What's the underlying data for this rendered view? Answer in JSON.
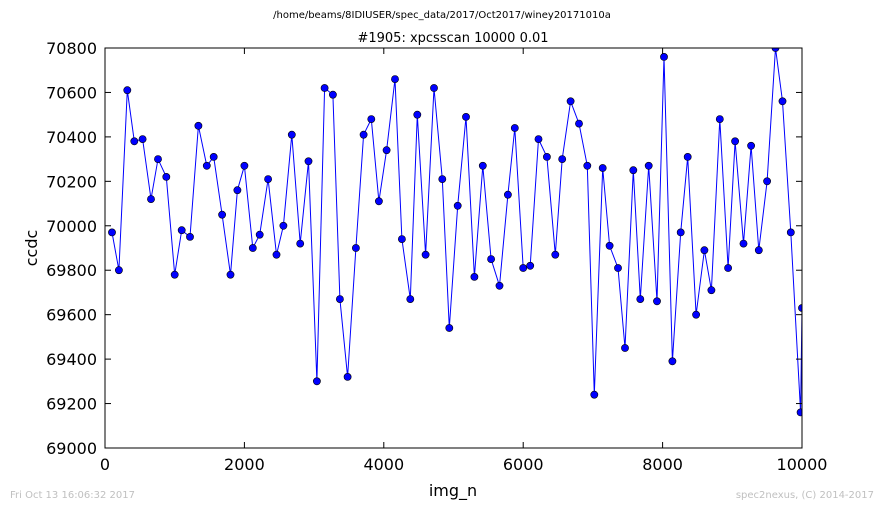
{
  "header": {
    "path": "/home/beams/8IDIUSER/spec_data/2017/Oct2017/winey20171010a",
    "scan_title": "#1905: xpcsscan 10000 0.01"
  },
  "footer": {
    "timestamp": "Fri Oct 13 16:06:32 2017",
    "credit": "spec2nexus, (C) 2014-2017"
  },
  "colors": {
    "line": "#0000ff",
    "marker": "#0000ff",
    "axes": "#000000"
  },
  "chart_data": {
    "type": "line",
    "xlabel": "img_n",
    "ylabel": "ccdc",
    "xlim": [
      0,
      10000
    ],
    "ylim": [
      69000,
      70800
    ],
    "xticks": [
      0,
      2000,
      4000,
      6000,
      8000,
      10000
    ],
    "yticks": [
      69000,
      69200,
      69400,
      69600,
      69800,
      70000,
      70200,
      70400,
      70600,
      70800
    ],
    "xtick_labels": [
      "0",
      "2000",
      "4000",
      "6000",
      "8000",
      "10000"
    ],
    "ytick_labels": [
      "69000",
      "69200",
      "69400",
      "69600",
      "69800",
      "70000",
      "70200",
      "70400",
      "70600",
      "70800"
    ],
    "grid": false,
    "series": [
      {
        "x": [
          100,
          200,
          320,
          420,
          540,
          660,
          760,
          880,
          1000,
          1100,
          1220,
          1340,
          1460,
          1560,
          1680,
          1800,
          1900,
          2000,
          2120,
          2220,
          2340,
          2460,
          2560,
          2680,
          2800,
          2920,
          3040,
          3150,
          3270,
          3370,
          3480,
          3600,
          3710,
          3820,
          3930,
          4040,
          4160,
          4260,
          4380,
          4480,
          4600,
          4720,
          4840,
          4940,
          5060,
          5180,
          5300,
          5420,
          5540,
          5660,
          5780,
          5880,
          6000,
          6100,
          6220,
          6340,
          6460,
          6560,
          6680,
          6800,
          6920,
          7020,
          7140,
          7240,
          7360,
          7460,
          7580,
          7680,
          7800,
          7920,
          8020,
          8140,
          8260,
          8360,
          8480,
          8600,
          8700,
          8820,
          8940,
          9040,
          9160,
          9270,
          9380,
          9500,
          9620,
          9720,
          9840,
          9980,
          10000
        ],
        "y": [
          69970,
          69800,
          70610,
          70380,
          70390,
          70120,
          70300,
          70220,
          69780,
          69980,
          69950,
          70450,
          70270,
          70310,
          70050,
          69780,
          70160,
          70270,
          69900,
          69960,
          70210,
          69870,
          70000,
          70410,
          69920,
          70290,
          69300,
          70620,
          70590,
          69670,
          69320,
          69900,
          70410,
          70480,
          70110,
          70340,
          70660,
          69940,
          69670,
          70500,
          69870,
          70620,
          70210,
          69540,
          70090,
          70490,
          69770,
          70270,
          69850,
          69730,
          70140,
          70440,
          69810,
          69820,
          70390,
          70310,
          69870,
          70300,
          70560,
          70460,
          70270,
          69240,
          70260,
          69910,
          69810,
          69450,
          70250,
          69670,
          70270,
          69660,
          70760,
          69390,
          69970,
          70310,
          69600,
          69890,
          69710,
          70480,
          69810,
          70380,
          69920,
          70360,
          69890,
          70200,
          70800,
          70560,
          69970,
          69160,
          69630
        ]
      }
    ]
  }
}
